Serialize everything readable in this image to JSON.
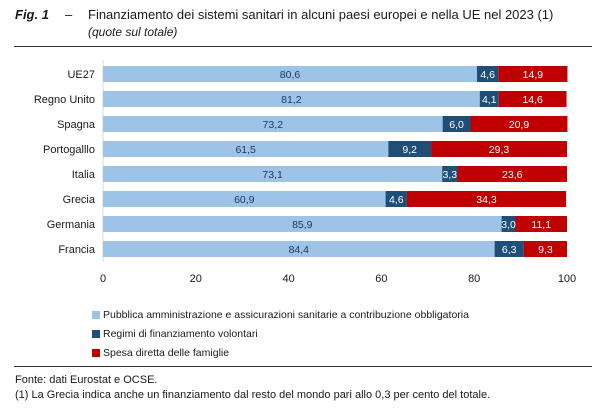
{
  "figure": {
    "label": "Fig. 1",
    "dash": "–",
    "title": "Finanziamento dei sistemi sanitari in alcuni paesi europei e nella UE nel 2023 (1)",
    "subtitle": "(quote sul totale)"
  },
  "notes": {
    "source": "Fonte: dati Eurostat e OCSE.",
    "footnote": "(1) La Grecia indica anche un finanziamento dal resto del mondo pari allo 0,3 per cento del totale."
  },
  "chart_data": {
    "type": "bar",
    "orientation": "horizontal",
    "stacked": true,
    "title": "Finanziamento dei sistemi sanitari in alcuni paesi europei e nella UE nel 2023 (1)",
    "subtitle": "(quote sul totale)",
    "xlabel": "",
    "ylabel": "",
    "xlim": [
      0,
      100
    ],
    "xticks": [
      0,
      20,
      40,
      60,
      80,
      100
    ],
    "grid": false,
    "legend_position": "bottom",
    "categories": [
      "UE27",
      "Regno Unito",
      "Spagna",
      "Portogalllo",
      "Italia",
      "Grecia",
      "Germania",
      "Francia"
    ],
    "series": [
      {
        "name": "Pubblica amministrazione e assicurazioni sanitarie a contribuzione obbligatoria",
        "color": "#9DC3E6",
        "label_color": "#1F3864",
        "values": [
          80.6,
          81.2,
          73.2,
          61.5,
          73.1,
          60.9,
          85.9,
          84.4
        ],
        "labels": [
          "80,6",
          "81,2",
          "73,2",
          "61,5",
          "73,1",
          "60,9",
          "85,9",
          "84,4"
        ]
      },
      {
        "name": "Regimi di finanziamento volontari",
        "color": "#1F4E79",
        "label_color": "#FFFFFF",
        "values": [
          4.6,
          4.1,
          6.0,
          9.2,
          3.3,
          4.6,
          3.0,
          6.3
        ],
        "labels": [
          "4,6",
          "4,1",
          "6,0",
          "9,2",
          "3,3",
          "4,6",
          "3,0",
          "6,3"
        ]
      },
      {
        "name": "Spesa diretta delle famiglie",
        "color": "#C00000",
        "label_color": "#FFFFFF",
        "values": [
          14.9,
          14.6,
          20.9,
          29.3,
          23.6,
          34.3,
          11.1,
          9.3
        ],
        "labels": [
          "14,9",
          "14,6",
          "20,9",
          "29,3",
          "23,6",
          "34,3",
          "11,1",
          "9,3"
        ]
      }
    ]
  }
}
